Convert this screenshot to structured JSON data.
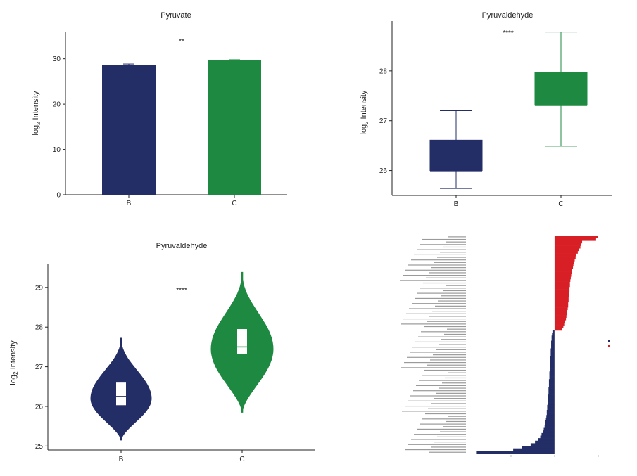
{
  "colors": {
    "B": "#232d66",
    "C": "#1e8a41",
    "pos": "#d81f26",
    "neg": "#232d66"
  },
  "ylabel_main": "log",
  "ylabel_sub": "2",
  "ylabel_rest": " Intensity",
  "chart_data": [
    {
      "type": "bar",
      "title": "Pyruvate",
      "categories": [
        "B",
        "C"
      ],
      "values": [
        28.6,
        29.7
      ],
      "errors": [
        0.25,
        0.1
      ],
      "ylim": [
        0,
        36
      ],
      "yticks": [
        0,
        10,
        20,
        30
      ],
      "ylabel": "log2 Intensity",
      "significance": "**"
    },
    {
      "type": "box",
      "title": "Pyruvaldehyde",
      "categories": [
        "B",
        "C"
      ],
      "boxes": [
        {
          "min": 25.64,
          "q1": 26.0,
          "median": 26.0,
          "q3": 26.61,
          "max": 27.2
        },
        {
          "min": 26.49,
          "q1": 27.31,
          "median": 27.31,
          "q3": 27.97,
          "max": 28.78
        }
      ],
      "ylim": [
        25.5,
        29.0
      ],
      "yticks": [
        26,
        27,
        28
      ],
      "ylabel": "log2 Intensity",
      "significance": "****"
    },
    {
      "type": "violin",
      "title": "Pyruvaldehyde",
      "categories": [
        "B",
        "C"
      ],
      "violins": [
        {
          "min": 25.15,
          "max": 27.72,
          "mode": 26.2,
          "q1": 26.03,
          "median": 26.25,
          "q3": 26.6
        },
        {
          "min": 25.85,
          "max": 29.38,
          "mode": 27.45,
          "q1": 27.33,
          "median": 27.5,
          "q3": 27.95
        }
      ],
      "ylim": [
        24.9,
        29.6
      ],
      "yticks": [
        25,
        26,
        27,
        28,
        29
      ],
      "ylabel": "log2 Intensity",
      "significance": "****"
    },
    {
      "type": "bar",
      "orientation": "horizontal",
      "positive_values": [
        1.0,
        0.95,
        0.63,
        0.61,
        0.59,
        0.56,
        0.53,
        0.5,
        0.48,
        0.46,
        0.44,
        0.43,
        0.42,
        0.4,
        0.39,
        0.38,
        0.37,
        0.36,
        0.35,
        0.35,
        0.34,
        0.34,
        0.33,
        0.33,
        0.32,
        0.32,
        0.31,
        0.31,
        0.3,
        0.29,
        0.28,
        0.27,
        0.26,
        0.24,
        0.22,
        0.2,
        0.17
      ],
      "negative_values": [
        -0.05,
        -0.06,
        -0.07,
        -0.07,
        -0.08,
        -0.08,
        -0.08,
        -0.09,
        -0.09,
        -0.09,
        -0.1,
        -0.1,
        -0.1,
        -0.11,
        -0.11,
        -0.11,
        -0.12,
        -0.12,
        -0.12,
        -0.13,
        -0.13,
        -0.13,
        -0.14,
        -0.14,
        -0.14,
        -0.15,
        -0.15,
        -0.16,
        -0.16,
        -0.17,
        -0.17,
        -0.18,
        -0.18,
        -0.19,
        -0.2,
        -0.21,
        -0.22,
        -0.23,
        -0.25,
        -0.27,
        -0.3,
        -0.33,
        -0.38,
        -0.45,
        -0.55,
        -0.75,
        -0.95,
        -1.8
      ],
      "xlim": [
        -1.8,
        1.0
      ]
    }
  ]
}
